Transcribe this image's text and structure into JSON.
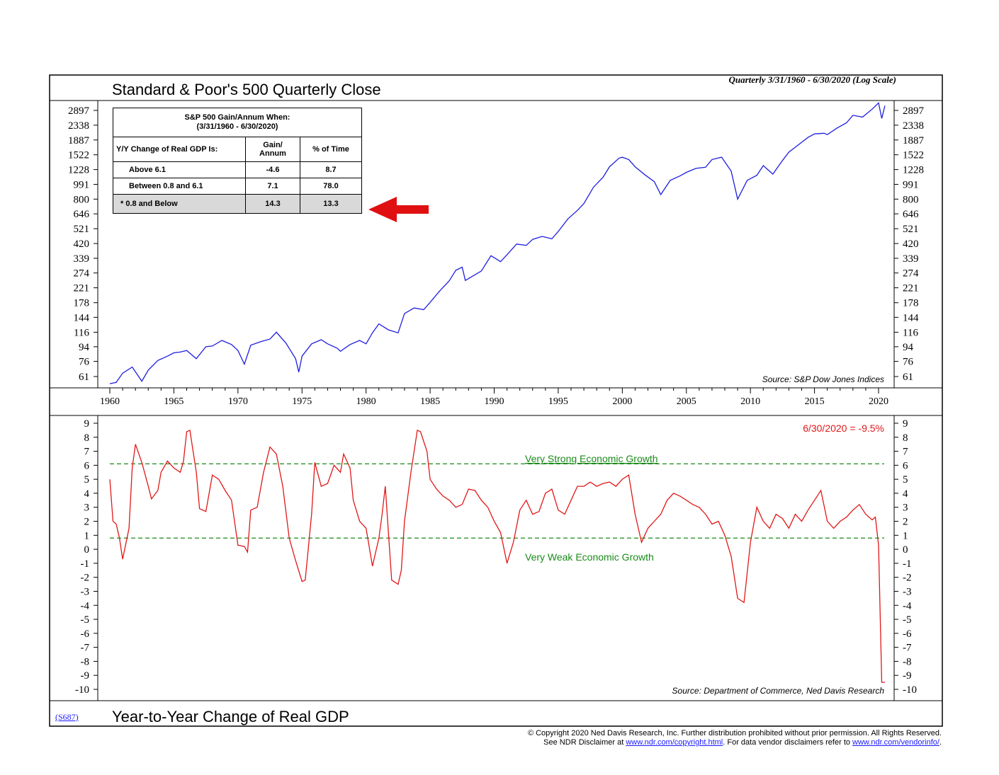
{
  "titles": {
    "main": "Standard & Poor's 500 Quarterly Close",
    "bottom": "Year-to-Year Change of Real GDP",
    "subtitle": "Quarterly 3/31/1960 - 6/30/2020 (Log Scale)",
    "chart_code": "(S687)"
  },
  "copyright": {
    "line1": "© Copyright 2020 Ned Davis Research, Inc.  Further distribution prohibited without prior permission.  All Rights Reserved.",
    "line2_pre": "See NDR Disclaimer at ",
    "link1": "www.ndr.com/copyright.html",
    "line2_mid": ". For data vendor disclaimers refer to ",
    "link2": "www.ndr.com/vendorinfo/",
    "line2_post": "."
  },
  "table": {
    "title1": "S&P 500 Gain/Annum When:",
    "title2": "(3/31/1960 - 6/30/2020)",
    "col1_header": "Y/Y Change of Real GDP Is:",
    "col2_header": "Gain/ Annum",
    "col3_header": "% of Time",
    "rows": [
      {
        "label": "Above 6.1",
        "gain": "-4.6",
        "pct": "8.7"
      },
      {
        "label": "Between 0.8 and 6.1",
        "gain": "7.1",
        "pct": "78.0"
      },
      {
        "label": "* 0.8 and Below",
        "gain": "14.3",
        "pct": "13.3"
      }
    ]
  },
  "colors": {
    "sp500": "#1f1fe0",
    "gdp": "#e01818",
    "threshold": "#1a8a1a",
    "arrow": "#e01010",
    "highlight": "#d9d9d9"
  },
  "chart_data": [
    {
      "type": "line",
      "title": "Standard & Poor's 500 Quarterly Close",
      "scale": "log",
      "ylim": [
        55,
        3300
      ],
      "xlim": [
        1959.8,
        2020.9
      ],
      "yticks": [
        61,
        76,
        94,
        116,
        144,
        178,
        221,
        274,
        339,
        420,
        521,
        646,
        800,
        991,
        1228,
        1522,
        1887,
        2338,
        2897
      ],
      "xticks": [
        1960,
        1965,
        1970,
        1975,
        1980,
        1985,
        1990,
        1995,
        2000,
        2005,
        2010,
        2015,
        2020
      ],
      "source": "Source: S&P Dow Jones Indices",
      "series": [
        {
          "x": [
            1960.0,
            1960.5,
            1961.0,
            1961.75,
            1962.5,
            1963.0,
            1963.75,
            1964.5,
            1965.0,
            1965.5,
            1966.0,
            1966.75,
            1967.5,
            1968.0,
            1968.75,
            1969.5,
            1970.0,
            1970.5,
            1971.0,
            1971.75,
            1972.5,
            1973.0,
            1973.75,
            1974.5,
            1974.75,
            1975.0,
            1975.75,
            1976.5,
            1977.0,
            1977.75,
            1978.0,
            1978.75,
            1979.5,
            1980.0,
            1980.5,
            1981.0,
            1981.75,
            1982.5,
            1983.0,
            1983.75,
            1984.5,
            1985.0,
            1985.75,
            1986.5,
            1987.0,
            1987.5,
            1987.75,
            1988.5,
            1989.0,
            1989.75,
            1990.5,
            1991.0,
            1991.75,
            1992.5,
            1993.0,
            1993.75,
            1994.5,
            1995.0,
            1995.75,
            1996.5,
            1997.0,
            1997.75,
            1998.5,
            1999.0,
            1999.75,
            2000.0,
            2000.5,
            2001.0,
            2001.75,
            2002.5,
            2003.0,
            2003.75,
            2004.5,
            2005.0,
            2005.75,
            2006.5,
            2007.0,
            2007.75,
            2008.5,
            2009.0,
            2009.75,
            2010.5,
            2011.0,
            2011.75,
            2012.5,
            2013.0,
            2013.75,
            2014.5,
            2015.0,
            2015.75,
            2016.0,
            2016.75,
            2017.5,
            2018.0,
            2018.75,
            2019.5,
            2020.0,
            2020.25,
            2020.5
          ],
          "y": [
            55,
            56,
            64,
            70,
            57,
            67,
            77,
            82,
            86,
            87,
            89,
            79,
            94,
            95,
            103,
            97,
            89,
            73,
            96,
            101,
            105,
            116,
            99,
            79,
            65,
            82,
            98,
            104,
            98,
            92,
            88,
            97,
            103,
            98,
            115,
            131,
            120,
            115,
            152,
            165,
            161,
            179,
            211,
            245,
            285,
            298,
            246,
            267,
            282,
            352,
            323,
            357,
            417,
            409,
            446,
            466,
            450,
            500,
            600,
            680,
            750,
            950,
            1100,
            1280,
            1450,
            1470,
            1420,
            1280,
            1140,
            1030,
            855,
            1050,
            1120,
            1180,
            1250,
            1270,
            1420,
            1470,
            1200,
            800,
            1050,
            1130,
            1300,
            1150,
            1400,
            1580,
            1760,
            1960,
            2060,
            2080,
            2040,
            2240,
            2420,
            2700,
            2630,
            2950,
            3230,
            2580,
            3100
          ]
        }
      ]
    },
    {
      "type": "line",
      "title": "Year-to-Year Change of Real GDP",
      "ylim": [
        -10,
        9
      ],
      "xlim": [
        1959.8,
        2020.9
      ],
      "yticks": [
        -10,
        -9,
        -8,
        -7,
        -6,
        -5,
        -4,
        -3,
        -2,
        -1,
        0,
        1,
        2,
        3,
        4,
        5,
        6,
        7,
        8,
        9
      ],
      "latest_label": "6/30/2020 = -9.5%",
      "source": "Source: Department of Commerce, Ned Davis Research",
      "thresholds": [
        {
          "value": 6.1,
          "label": "Very Strong Economic Growth"
        },
        {
          "value": 0.8,
          "label": "Very Weak Economic Growth"
        }
      ],
      "series": [
        {
          "x": [
            1960.0,
            1960.25,
            1960.5,
            1960.75,
            1961.0,
            1961.5,
            1961.75,
            1962.0,
            1962.5,
            1963.0,
            1963.25,
            1963.75,
            1964.0,
            1964.5,
            1965.0,
            1965.5,
            1965.75,
            1966.0,
            1966.25,
            1966.75,
            1967.0,
            1967.5,
            1968.0,
            1968.5,
            1969.0,
            1969.5,
            1970.0,
            1970.5,
            1970.75,
            1971.0,
            1971.5,
            1972.0,
            1972.5,
            1973.0,
            1973.5,
            1974.0,
            1974.5,
            1975.0,
            1975.25,
            1975.75,
            1976.0,
            1976.5,
            1977.0,
            1977.5,
            1978.0,
            1978.25,
            1978.75,
            1979.0,
            1979.5,
            1980.0,
            1980.5,
            1981.0,
            1981.25,
            1981.5,
            1982.0,
            1982.5,
            1982.75,
            1983.0,
            1983.5,
            1984.0,
            1984.25,
            1984.75,
            1985.0,
            1985.5,
            1986.0,
            1986.5,
            1987.0,
            1987.5,
            1988.0,
            1988.5,
            1989.0,
            1989.5,
            1990.0,
            1990.5,
            1991.0,
            1991.5,
            1992.0,
            1992.5,
            1993.0,
            1993.5,
            1994.0,
            1994.5,
            1995.0,
            1995.5,
            1996.0,
            1996.5,
            1997.0,
            1997.5,
            1998.0,
            1998.5,
            1999.0,
            1999.5,
            2000.0,
            2000.5,
            2001.0,
            2001.5,
            2002.0,
            2002.5,
            2003.0,
            2003.5,
            2004.0,
            2004.5,
            2005.0,
            2005.5,
            2006.0,
            2006.5,
            2007.0,
            2007.5,
            2008.0,
            2008.5,
            2009.0,
            2009.5,
            2010.0,
            2010.5,
            2011.0,
            2011.5,
            2012.0,
            2012.5,
            2013.0,
            2013.5,
            2014.0,
            2014.5,
            2015.0,
            2015.5,
            2016.0,
            2016.5,
            2017.0,
            2017.5,
            2018.0,
            2018.5,
            2019.0,
            2019.5,
            2019.75,
            2020.0,
            2020.25,
            2020.5
          ],
          "y": [
            5.0,
            2.0,
            1.8,
            0.8,
            -0.7,
            1.5,
            5.8,
            7.5,
            6.2,
            4.5,
            3.6,
            4.2,
            5.5,
            6.3,
            5.8,
            5.5,
            6.3,
            8.4,
            8.5,
            5.5,
            2.9,
            2.7,
            5.3,
            5.0,
            4.2,
            3.5,
            0.3,
            0.2,
            -0.2,
            2.8,
            3.0,
            5.5,
            7.3,
            6.8,
            4.5,
            0.8,
            -0.8,
            -2.3,
            -2.2,
            2.5,
            6.2,
            4.5,
            4.7,
            6.0,
            5.5,
            6.8,
            5.8,
            3.5,
            2.0,
            1.5,
            -1.2,
            0.8,
            2.5,
            4.5,
            -2.2,
            -2.5,
            -1.5,
            2.0,
            5.5,
            8.5,
            8.4,
            7.0,
            5.0,
            4.3,
            3.8,
            3.5,
            3.0,
            3.2,
            4.3,
            4.2,
            3.5,
            3.0,
            2.0,
            1.2,
            -1.0,
            0.5,
            2.8,
            3.5,
            2.5,
            2.7,
            4.0,
            4.3,
            2.8,
            2.5,
            3.5,
            4.5,
            4.5,
            4.8,
            4.5,
            4.7,
            4.8,
            4.5,
            5.0,
            5.3,
            2.5,
            0.5,
            1.5,
            2.0,
            2.5,
            3.5,
            4.0,
            3.8,
            3.5,
            3.2,
            3.0,
            2.5,
            1.8,
            2.0,
            1.0,
            -0.5,
            -3.5,
            -3.8,
            0.5,
            3.0,
            2.0,
            1.5,
            2.5,
            2.2,
            1.5,
            2.5,
            2.0,
            2.8,
            3.5,
            4.2,
            2.0,
            1.5,
            2.0,
            2.3,
            2.8,
            3.2,
            2.5,
            2.1,
            2.3,
            0.3,
            -9.5,
            -9.5
          ]
        }
      ]
    }
  ]
}
